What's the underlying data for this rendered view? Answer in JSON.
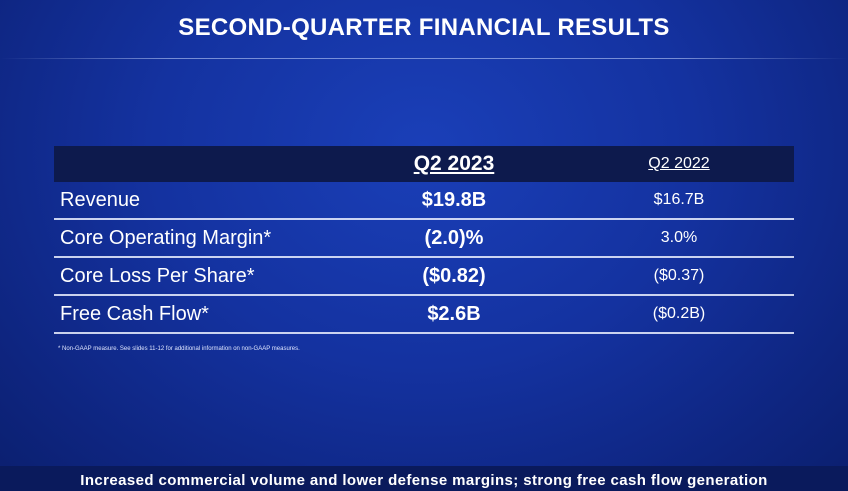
{
  "slide": {
    "title": "SECOND-QUARTER FINANCIAL RESULTS",
    "footnote": "* Non-GAAP measure. See slides 11-12 for additional information on non-GAAP measures.",
    "tagline": "Increased commercial volume and lower defense margins; strong free cash flow generation"
  },
  "table": {
    "headers": [
      "",
      "Q2 2023",
      "Q2 2022"
    ],
    "rows": [
      {
        "label": "Revenue",
        "q2_2023": "$19.8B",
        "q2_2022": "$16.7B"
      },
      {
        "label": "Core Operating Margin*",
        "q2_2023": "(2.0)%",
        "q2_2022": "3.0%"
      },
      {
        "label": "Core Loss Per Share*",
        "q2_2023": "($0.82)",
        "q2_2022": "($0.37)"
      },
      {
        "label": "Free Cash Flow*",
        "q2_2023": "$2.6B",
        "q2_2022": "($0.2B)"
      }
    ]
  },
  "colors": {
    "background": "#1432a0",
    "header_band": "#0d1a4d",
    "text": "#ffffff"
  }
}
